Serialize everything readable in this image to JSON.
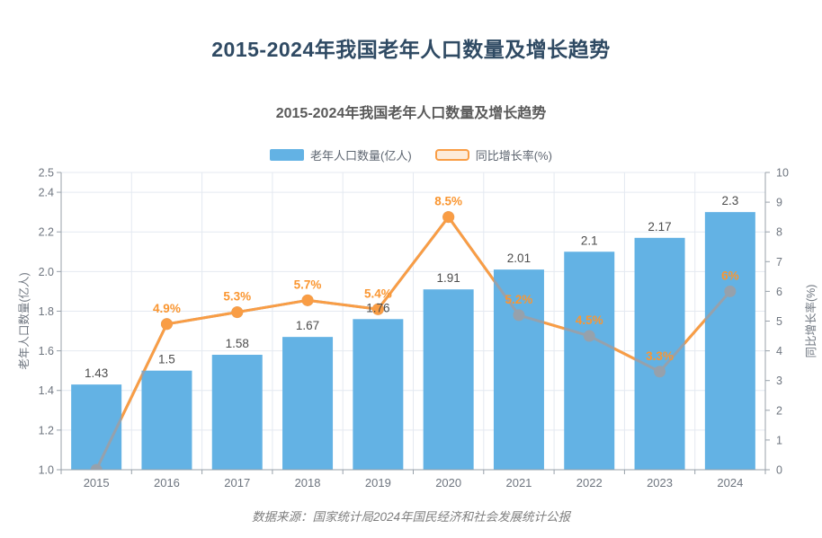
{
  "page": {
    "main_title": "2015-2024年我国老年人口数量及增长趋势",
    "source_note": "数据来源：国家统计局2024年国民经济和社会发展统计公报"
  },
  "chart_data": {
    "type": "bar+line",
    "title": "2015-2024年我国老年人口数量及增长趋势",
    "categories": [
      "2015",
      "2016",
      "2017",
      "2018",
      "2019",
      "2020",
      "2021",
      "2022",
      "2023",
      "2024"
    ],
    "series": [
      {
        "name": "老年人口数量(亿人)",
        "type": "bar",
        "y_axis": "left",
        "values": [
          1.43,
          1.5,
          1.58,
          1.67,
          1.76,
          1.91,
          2.01,
          2.1,
          2.17,
          2.3
        ],
        "labels": [
          "1.43",
          "1.5",
          "1.58",
          "1.67",
          "1.76",
          "1.91",
          "2.01",
          "2.1",
          "2.17",
          "2.3"
        ]
      },
      {
        "name": "同比增长率(%)",
        "type": "line",
        "y_axis": "right",
        "values": [
          0,
          4.9,
          5.3,
          5.7,
          5.4,
          8.5,
          5.2,
          4.5,
          3.3,
          6
        ],
        "labels": [
          "",
          "4.9%",
          "5.3%",
          "5.7%",
          "5.4%",
          "8.5%",
          "5.2%",
          "4.5%",
          "3.3%",
          "6%"
        ]
      }
    ],
    "left_axis": {
      "name": "老年人口数量(亿人)",
      "min": 1.0,
      "max": 2.5,
      "tick_values": [
        1.0,
        1.2,
        1.4,
        1.6,
        1.8,
        2.0,
        2.2,
        2.4,
        2.5
      ],
      "tick_labels": [
        "1.0",
        "1.2",
        "1.4",
        "1.6",
        "1.8",
        "2.0",
        "2.2",
        "2.4",
        "2.5"
      ]
    },
    "right_axis": {
      "name": "同比增长率(%)",
      "min": 0,
      "max": 10,
      "tick_values": [
        0,
        1,
        2,
        3,
        4,
        5,
        6,
        7,
        8,
        9,
        10
      ],
      "tick_labels": [
        "0",
        "1",
        "2",
        "3",
        "4",
        "5",
        "6",
        "7",
        "8",
        "9",
        "10"
      ]
    },
    "legend_position": "top-center",
    "grid": {
      "horizontal": "left-axis-ticks",
      "vertical": "category-boundaries"
    },
    "colors": {
      "bar": "#63b2e4",
      "line": "#f99d45",
      "line_muted": "#96a1ac",
      "label_orange": "#fa9631",
      "label_dark": "#4c4c4c",
      "grid": "#e4e9f1",
      "axis": "#98a1aa",
      "tick_text": "#6e757f",
      "title": "#2f4a63",
      "subtitle": "#595959",
      "source": "#7f7f7f",
      "legend_text": "#5d6570",
      "legend_line_fill": "#fdebd9"
    }
  }
}
